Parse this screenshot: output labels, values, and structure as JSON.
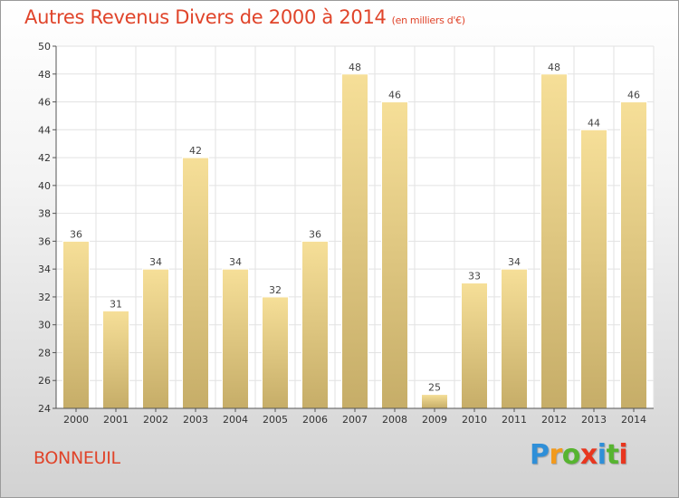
{
  "chart_data": {
    "type": "bar",
    "title": "Autres Revenus Divers de 2000 à 2014",
    "subtitle": "(en milliers d'€)",
    "categories": [
      "2000",
      "2001",
      "2002",
      "2003",
      "2004",
      "2005",
      "2006",
      "2007",
      "2008",
      "2009",
      "2010",
      "2011",
      "2012",
      "2013",
      "2014"
    ],
    "values": [
      36,
      31,
      34,
      42,
      34,
      32,
      36,
      48,
      46,
      25,
      33,
      34,
      48,
      44,
      46
    ],
    "ylim": [
      24,
      50
    ],
    "yticks": [
      24,
      26,
      28,
      30,
      32,
      34,
      36,
      38,
      40,
      42,
      44,
      46,
      48,
      50
    ],
    "grid": true,
    "xlabel": "",
    "ylabel": ""
  },
  "location": "BONNEUIL",
  "brand": {
    "letters": [
      "P",
      "r",
      "o",
      "x",
      "i",
      "t",
      "i"
    ],
    "colors": [
      "#2f8fd8",
      "#f29a1d",
      "#57b430",
      "#e8361f",
      "#2f8fd8",
      "#57b430",
      "#e8361f"
    ]
  },
  "colors": {
    "accent": "#e0442a",
    "bar_light": "#f6df98",
    "bar_dark": "#c6ad68",
    "grid": "#e2e2e2",
    "axis": "#555555"
  }
}
